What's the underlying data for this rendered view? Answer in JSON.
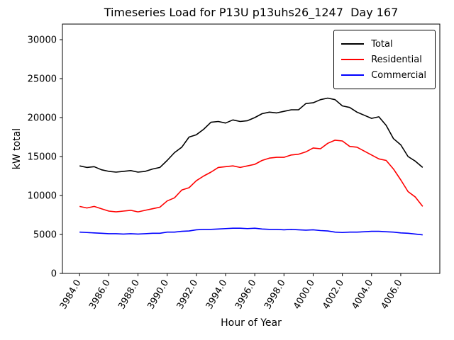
{
  "title": "Timeseries Load for P13U p13uhs26_1247  Day 167",
  "chart_data": {
    "type": "line",
    "title": "Timeseries Load for P13U p13uhs26_1247  Day 167",
    "xlabel": "Hour of Year",
    "ylabel": "kW total",
    "xlim": [
      3982.825,
      4008.675
    ],
    "ylim": [
      0,
      32000
    ],
    "x_start": 3984.0,
    "x_step": 0.5,
    "xticks": [
      3984,
      3986,
      3988,
      3990,
      3992,
      3994,
      3996,
      3998,
      4000,
      4002,
      4004,
      4006
    ],
    "xtick_labels": [
      "3984.0",
      "3986.0",
      "3988.0",
      "3990.0",
      "3992.0",
      "3994.0",
      "3996.0",
      "3998.0",
      "4000.0",
      "4002.0",
      "4004.0",
      "4006.0"
    ],
    "yticks": [
      0,
      5000,
      10000,
      15000,
      20000,
      25000,
      30000
    ],
    "ytick_labels": [
      "0",
      "5000",
      "10000",
      "15000",
      "20000",
      "25000",
      "30000"
    ],
    "grid": false,
    "legend_position": "upper right",
    "series": [
      {
        "name": "Total",
        "color": "#000000",
        "values": [
          13800,
          13600,
          13700,
          13300,
          13100,
          13000,
          13100,
          13200,
          13000,
          13100,
          13400,
          13600,
          14500,
          15500,
          16200,
          17500,
          17800,
          18500,
          19400,
          19500,
          19300,
          19700,
          19500,
          19600,
          20000,
          20500,
          20700,
          20600,
          20800,
          21000,
          21000,
          21800,
          21900,
          22300,
          22500,
          22300,
          21500,
          21300,
          20700,
          20300,
          19900,
          20100,
          19000,
          17300,
          16500,
          15000,
          14400,
          13600
        ]
      },
      {
        "name": "Residential",
        "color": "#ff0000",
        "values": [
          8600,
          8400,
          8600,
          8300,
          8000,
          7900,
          8000,
          8100,
          7900,
          8100,
          8300,
          8500,
          9300,
          9700,
          10700,
          11000,
          11900,
          12500,
          13000,
          13600,
          13700,
          13800,
          13600,
          13800,
          14000,
          14500,
          14800,
          14900,
          14900,
          15200,
          15300,
          15600,
          16100,
          16000,
          16700,
          17100,
          17000,
          16300,
          16200,
          15700,
          15200,
          14700,
          14500,
          13400,
          12000,
          10500,
          9800,
          8600
        ]
      },
      {
        "name": "Commercial",
        "color": "#0000ff",
        "values": [
          5300,
          5250,
          5200,
          5150,
          5100,
          5100,
          5050,
          5100,
          5050,
          5100,
          5150,
          5150,
          5300,
          5300,
          5400,
          5450,
          5600,
          5650,
          5650,
          5700,
          5750,
          5800,
          5800,
          5750,
          5800,
          5700,
          5650,
          5650,
          5600,
          5650,
          5600,
          5550,
          5600,
          5500,
          5450,
          5300,
          5250,
          5300,
          5300,
          5350,
          5400,
          5400,
          5350,
          5300,
          5200,
          5150,
          5050,
          4950
        ]
      }
    ]
  }
}
